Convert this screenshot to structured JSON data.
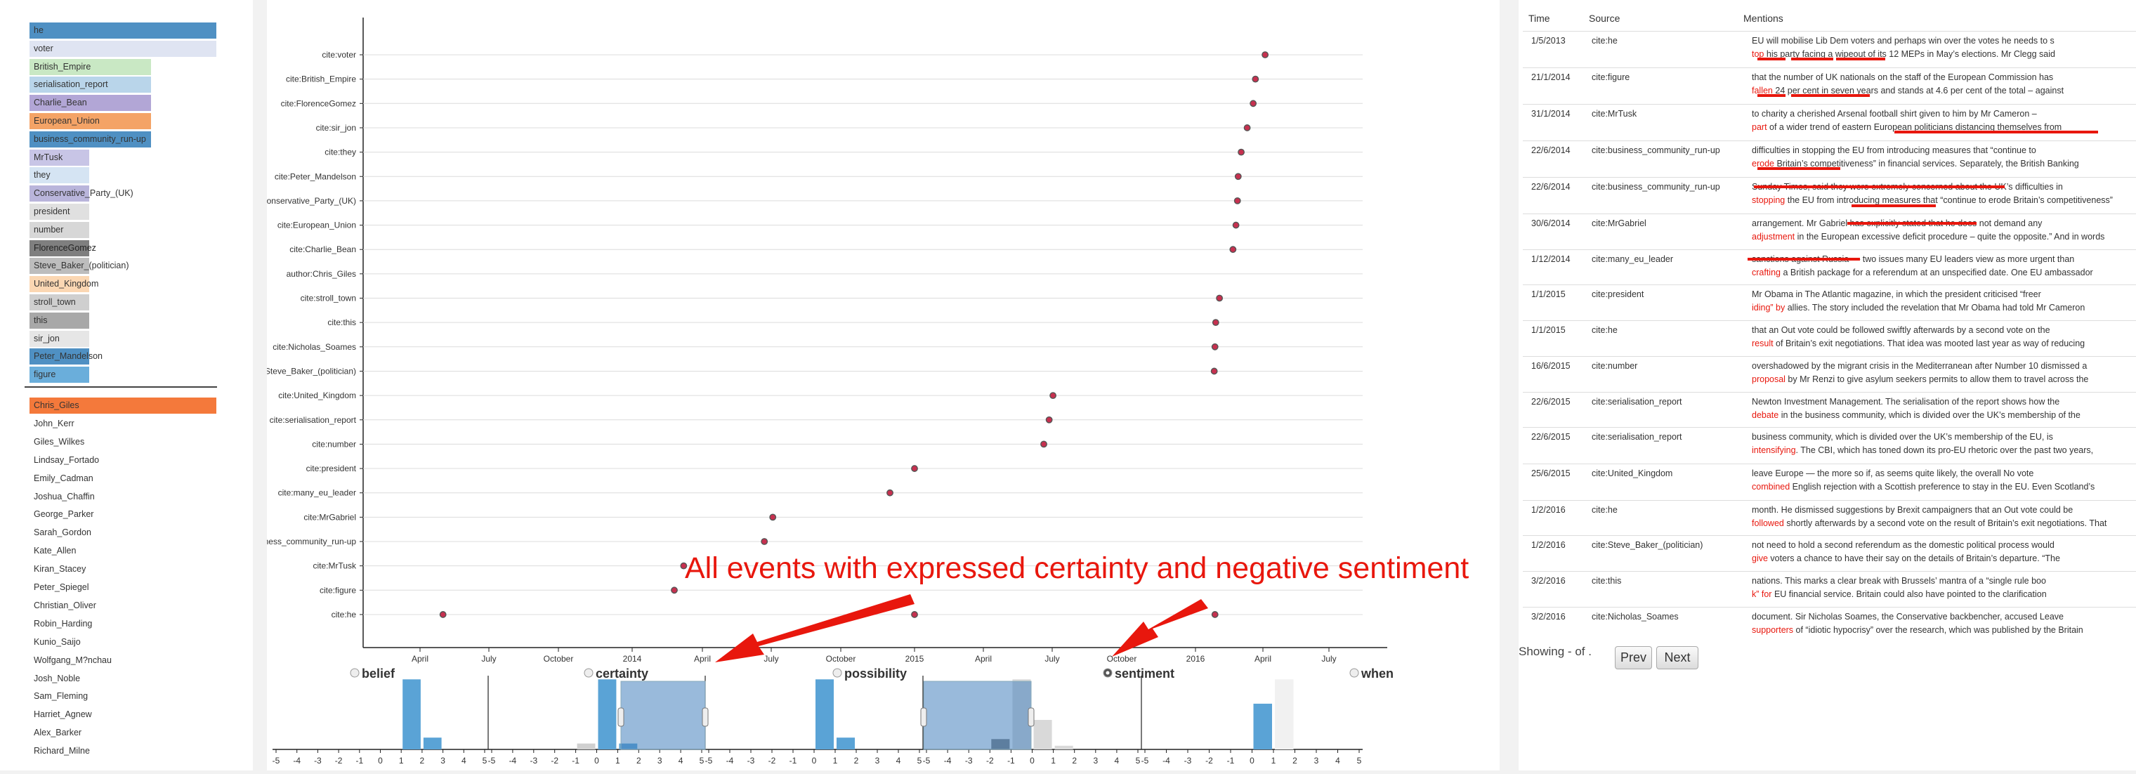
{
  "actors_top": [
    {
      "label": "he",
      "color": "#4f90c3"
    },
    {
      "label": "voter",
      "color": "#dfe4f2"
    },
    {
      "label": "British_Empire",
      "color": "#c9e8c4"
    },
    {
      "label": "serialisation_report",
      "color": "#b9d5ea"
    },
    {
      "label": "Charlie_Bean",
      "color": "#b2a6d6"
    },
    {
      "label": "European_Union",
      "color": "#f4a366"
    },
    {
      "label": "business_community_run-up",
      "color": "#4f90c3"
    },
    {
      "label": "MrTusk",
      "color": "#c8c5e6"
    },
    {
      "label": "they",
      "color": "#d5e4f3"
    },
    {
      "label": "Conservative_Party_(UK)",
      "color": "#b9b5db"
    },
    {
      "label": "president",
      "color": "#e0e0e0"
    },
    {
      "label": "number",
      "color": "#d7d7d7"
    },
    {
      "label": "FlorenceGomez",
      "color": "#7f7f7f"
    },
    {
      "label": "Steve_Baker_(politician)",
      "color": "#bdbdbd"
    },
    {
      "label": "United_Kingdom",
      "color": "#fbd7b3"
    },
    {
      "label": "stroll_town",
      "color": "#cfcfcf"
    },
    {
      "label": "this",
      "color": "#a8a8a8"
    },
    {
      "label": "sir_jon",
      "color": "#e6e6e6"
    },
    {
      "label": "Peter_Mandelson",
      "color": "#4f90c3"
    },
    {
      "label": "figure",
      "color": "#6aaedb"
    }
  ],
  "authors": [
    {
      "label": "Chris_Giles",
      "color": "#f4793b"
    },
    {
      "label": "John_Kerr"
    },
    {
      "label": "Giles_Wilkes"
    },
    {
      "label": "Lindsay_Fortado"
    },
    {
      "label": "Emily_Cadman"
    },
    {
      "label": "Joshua_Chaffin"
    },
    {
      "label": "George_Parker"
    },
    {
      "label": "Sarah_Gordon"
    },
    {
      "label": "Kate_Allen"
    },
    {
      "label": "Kiran_Stacey"
    },
    {
      "label": "Peter_Spiegel"
    },
    {
      "label": "Christian_Oliver"
    },
    {
      "label": "Robin_Harding"
    },
    {
      "label": "Kunio_Saijo"
    },
    {
      "label": "Wolfgang_M?nchau"
    },
    {
      "label": "Josh_Noble"
    },
    {
      "label": "Sam_Fleming"
    },
    {
      "label": "Harriet_Agnew"
    },
    {
      "label": "Alex_Barker"
    },
    {
      "label": "Richard_Milne"
    }
  ],
  "timeline": {
    "rows": [
      "cite:voter",
      "cite:British_Empire",
      "cite:FlorenceGomez",
      "cite:sir_jon",
      "cite:they",
      "cite:Peter_Mandelson",
      "cite:Conservative_Party_(UK)",
      "cite:European_Union",
      "cite:Charlie_Bean",
      "author:Chris_Giles",
      "cite:stroll_town",
      "cite:this",
      "cite:Nicholas_Soames",
      "cite:Steve_Baker_(politician)",
      "cite:United_Kingdom",
      "cite:serialisation_report",
      "cite:number",
      "cite:president",
      "cite:many_eu_leader",
      "cite:MrGabriel",
      "cite:business_community_run-up",
      "cite:MrTusk",
      "cite:figure",
      "cite:he"
    ],
    "x_ticks": [
      "April",
      "July",
      "October",
      "2014",
      "April",
      "July",
      "October",
      "2015",
      "April",
      "July",
      "October",
      "2016",
      "April",
      "July"
    ],
    "points": [
      {
        "row": 0,
        "date": "2016-04-04"
      },
      {
        "row": 1,
        "date": "2016-03-21"
      },
      {
        "row": 2,
        "date": "2016-03-18"
      },
      {
        "row": 3,
        "date": "2016-03-10"
      },
      {
        "row": 4,
        "date": "2016-03-02"
      },
      {
        "row": 5,
        "date": "2016-02-28"
      },
      {
        "row": 6,
        "date": "2016-02-27"
      },
      {
        "row": 7,
        "date": "2016-02-25"
      },
      {
        "row": 8,
        "date": "2016-02-21"
      },
      {
        "row": 10,
        "date": "2016-02-03"
      },
      {
        "row": 11,
        "date": "2016-01-28"
      },
      {
        "row": 12,
        "date": "2016-01-27"
      },
      {
        "row": 13,
        "date": "2016-01-26"
      },
      {
        "row": 14,
        "date": "2015-07-02"
      },
      {
        "row": 15,
        "date": "2015-06-27"
      },
      {
        "row": 16,
        "date": "2015-06-20"
      },
      {
        "row": 17,
        "date": "2015-01-01"
      },
      {
        "row": 18,
        "date": "2014-12-01"
      },
      {
        "row": 19,
        "date": "2014-07-03"
      },
      {
        "row": 20,
        "date": "2014-06-22"
      },
      {
        "row": 21,
        "date": "2014-03-07"
      },
      {
        "row": 22,
        "date": "2014-02-25"
      },
      {
        "row": 23,
        "date": "2013-05-01"
      },
      {
        "row": 23,
        "date": "2015-01-01"
      },
      {
        "row": 23,
        "date": "2016-01-27"
      }
    ]
  },
  "facets": [
    {
      "name": "belief",
      "checked": false
    },
    {
      "name": "certainty",
      "checked": false
    },
    {
      "name": "possibility",
      "checked": false
    },
    {
      "name": "sentiment",
      "checked": true
    },
    {
      "name": "when",
      "checked": false
    }
  ],
  "histogram_ticks": [
    "-5",
    "-4",
    "-3",
    "-2",
    "-1",
    "0",
    "1",
    "2",
    "3",
    "4",
    "5"
  ],
  "annotation": "All events with expressed certainty and negative sentiment",
  "table": {
    "headers": {
      "time": "Time",
      "source": "Source",
      "mentions": "Mentions"
    },
    "rows": [
      {
        "time": "1/5/2013",
        "source": "cite:he",
        "l1": "EU will mobilise Lib Dem voters and perhaps win over the votes he needs to s",
        "l2a": "",
        "l2h": "top",
        "l2b": " his party facing a wipeout of its 12 MEPs in May’s elections. Mr Clegg said"
      },
      {
        "time": "21/1/2014",
        "source": "cite:figure",
        "l1": "that the number of UK nationals on the staff of the European Commission has",
        "l2a": "",
        "l2h": "fallen",
        "l2b": " 24 per cent in seven years and stands at 4.6 per cent of the total – against"
      },
      {
        "time": "31/1/2014",
        "source": "cite:MrTusk",
        "l1": "to charity a cherished Arsenal football shirt given to him by Mr Cameron –",
        "l2a": "",
        "l2h": "part",
        "l2b": " of a wider trend of eastern European politicians distancing themselves from"
      },
      {
        "time": "22/6/2014",
        "source": "cite:business_community_run-up",
        "l1": "difficulties in stopping the EU from introducing measures that “continue to",
        "l2a": "",
        "l2h": "erode",
        "l2b": " Britain’s competitiveness” in financial services. Separately, the British Banking"
      },
      {
        "time": "22/6/2014",
        "source": "cite:business_community_run-up",
        "l1": "Sunday Times, said they were extremely concerned about the UK’s difficulties in",
        "l2a": "",
        "l2h": "stopping",
        "l2b": " the EU from introducing measures that “continue to erode Britain’s competitiveness”"
      },
      {
        "time": "30/6/2014",
        "source": "cite:MrGabriel",
        "l1": "arrangement. Mr Gabriel has explicitly stated that he does not demand any",
        "l2a": "",
        "l2h": "adjustment",
        "l2b": " in the European excessive deficit procedure – quite the opposite.” And in words"
      },
      {
        "time": "1/12/2014",
        "source": "cite:many_eu_leader",
        "l1": "sanctions against Russia — two issues many EU leaders view as more urgent than",
        "l2a": "",
        "l2h": "crafting",
        "l2b": " a British package for a referendum at an unspecified date. One EU ambassador"
      },
      {
        "time": "1/1/2015",
        "source": "cite:president",
        "l1": "Mr Obama in The Atlantic magazine, in which the president criticised “freer",
        "l2a": "",
        "l2h": "iding” by",
        "l2b": " allies. The story included the revelation that Mr Obama had told Mr Cameron"
      },
      {
        "time": "1/1/2015",
        "source": "cite:he",
        "l1": "that an Out vote could be followed swiftly afterwards by a second vote on the",
        "l2a": "",
        "l2h": "result",
        "l2b": " of Britain’s exit negotiations. That idea was mooted last year as way of reducing"
      },
      {
        "time": "16/6/2015",
        "source": "cite:number",
        "l1": "overshadowed by the migrant crisis in the Mediterranean after Number 10 dismissed a",
        "l2a": "",
        "l2h": "proposal",
        "l2b": " by Mr Renzi to give asylum seekers permits to allow them to travel across the"
      },
      {
        "time": "22/6/2015",
        "source": "cite:serialisation_report",
        "l1": "Newton Investment Management. The serialisation of the report shows how the",
        "l2a": "",
        "l2h": "debate",
        "l2b": " in the business community, which is divided over the UK’s membership of the"
      },
      {
        "time": "22/6/2015",
        "source": "cite:serialisation_report",
        "l1": "business community, which is divided over the UK’s membership of the EU, is",
        "l2a": "",
        "l2h": "intensifying",
        "l2b": ". The CBI, which has toned down its pro-EU rhetoric over the past two years,"
      },
      {
        "time": "25/6/2015",
        "source": "cite:United_Kingdom",
        "l1": "leave Europe — the more so if, as seems quite likely, the overall No vote",
        "l2a": "",
        "l2h": "combined",
        "l2b": " English rejection with a Scottish preference to stay in the EU. Even Scotland’s"
      },
      {
        "time": "1/2/2016",
        "source": "cite:he",
        "l1": "month. He dismissed suggestions by Brexit campaigners that an Out vote could be",
        "l2a": "",
        "l2h": "followed",
        "l2b": " shortly afterwards by a second vote on the result of Britain’s exit negotiations. That"
      },
      {
        "time": "1/2/2016",
        "source": "cite:Steve_Baker_(politician)",
        "l1": "not need to hold a second referendum as the domestic political process would",
        "l2a": "",
        "l2h": "give",
        "l2b": " voters a chance to have their say on the details of Britain’s departure. “The"
      },
      {
        "time": "3/2/2016",
        "source": "cite:this",
        "l1": "nations. This marks a clear break with Brussels’ mantra of a “single rule boo",
        "l2a": "",
        "l2h": "k” for",
        "l2b": " EU financial service. Britain could also have pointed to the clarification"
      },
      {
        "time": "3/2/2016",
        "source": "cite:Nicholas_Soames",
        "l1": "document. Sir Nicholas Soames, the Conservative backbencher, accused Leave",
        "l2a": "",
        "l2h": "supporters",
        "l2b": " of “idiotic hypocrisy” over the research, which was published by the Britain"
      }
    ],
    "footer": "Showing - of .",
    "prev": "Prev",
    "next": "Next"
  }
}
